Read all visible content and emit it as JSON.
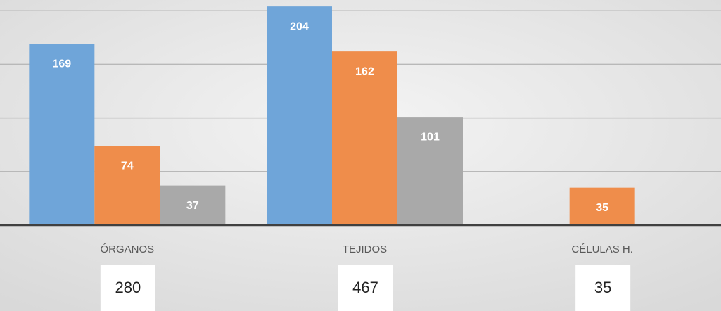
{
  "chart_data": {
    "type": "bar",
    "categories": [
      "ÓRGANOS",
      "TEJIDOS",
      "CÉLULAS H."
    ],
    "series": [
      {
        "color": "#6fa5d9",
        "values": [
          169,
          204,
          null
        ]
      },
      {
        "color": "#ef8d4b",
        "values": [
          74,
          162,
          35
        ]
      },
      {
        "color": "#a9a9a9",
        "values": [
          37,
          101,
          null
        ]
      }
    ],
    "totals": [
      280,
      467,
      35
    ],
    "ylim": [
      0,
      210
    ],
    "yticks": [
      0,
      50,
      100,
      150,
      200
    ],
    "grid": true
  }
}
